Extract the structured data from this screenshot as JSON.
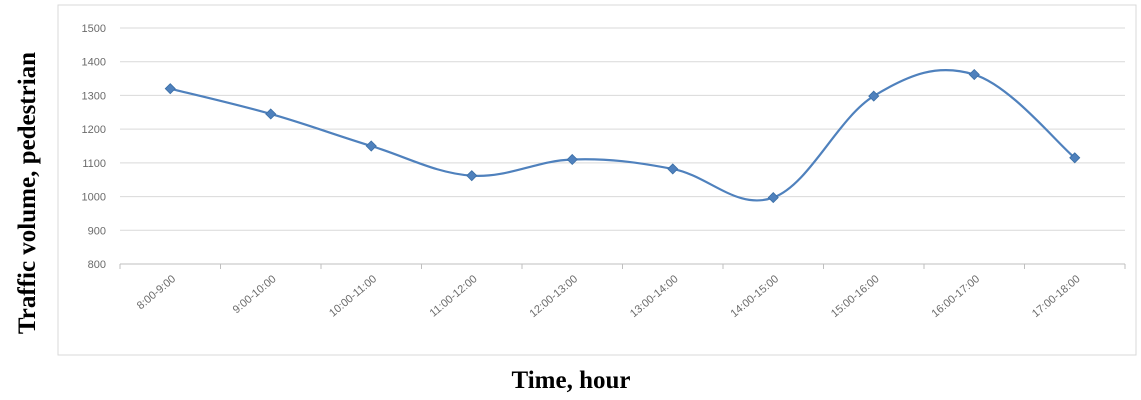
{
  "chart_data": {
    "type": "line",
    "title": "",
    "xlabel": "Time, hour",
    "ylabel": "Traffic volume, pedestrian",
    "ylim": [
      800,
      1500
    ],
    "y_ticks": [
      800,
      900,
      1000,
      1100,
      1200,
      1300,
      1400,
      1500
    ],
    "grid": true,
    "smooth": true,
    "categories": [
      "8:00-9:00",
      "9:00-10:00",
      "10:00-11:00",
      "11:00-12:00",
      "12:00-13:00",
      "13:00-14:00",
      "14:00-15:00",
      "15:00-16:00",
      "16:00-17:00",
      "17:00-18:00"
    ],
    "series": [
      {
        "values": [
          1320,
          1245,
          1150,
          1062,
          1110,
          1082,
          997,
          1298,
          1362,
          1115
        ],
        "color": "#4f81bd",
        "marker": "diamond"
      }
    ]
  }
}
